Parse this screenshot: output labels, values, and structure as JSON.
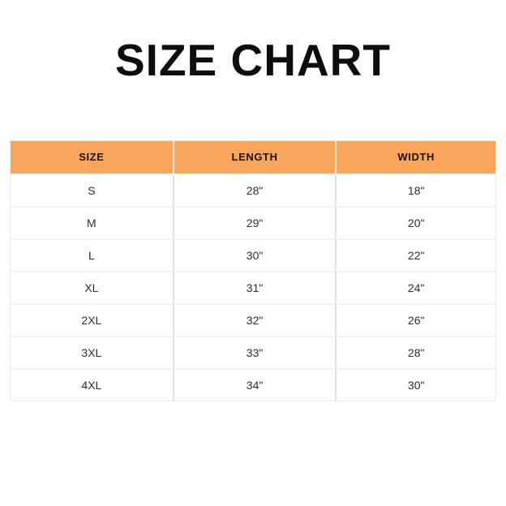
{
  "page": {
    "title": "SIZE CHART"
  },
  "colors": {
    "header_bg": "#FAA55C",
    "header_text": "#141414",
    "body_text": "#2E2E2E",
    "grid_vertical": "#E4E4E4",
    "grid_horizontal": "#F2F2F2",
    "page_bg": "#FFFFFF",
    "title_text": "#0D0D0D"
  },
  "table": {
    "columns": [
      "SIZE",
      "LENGTH",
      "WIDTH"
    ],
    "rows": [
      {
        "size": "S",
        "length": "28\"",
        "width": "18\""
      },
      {
        "size": "M",
        "length": "29\"",
        "width": "20\""
      },
      {
        "size": "L",
        "length": "30\"",
        "width": "22\""
      },
      {
        "size": "XL",
        "length": "31\"",
        "width": "24\""
      },
      {
        "size": "2XL",
        "length": "32\"",
        "width": "26\""
      },
      {
        "size": "3XL",
        "length": "33\"",
        "width": "28\""
      },
      {
        "size": "4XL",
        "length": "34\"",
        "width": "30\""
      }
    ]
  },
  "chart_data": {
    "type": "table",
    "title": "SIZE CHART",
    "columns": [
      "SIZE",
      "LENGTH",
      "WIDTH"
    ],
    "units": "inches",
    "rows": [
      [
        "S",
        28,
        18
      ],
      [
        "M",
        29,
        20
      ],
      [
        "L",
        30,
        22
      ],
      [
        "XL",
        31,
        24
      ],
      [
        "2XL",
        32,
        26
      ],
      [
        "3XL",
        33,
        28
      ],
      [
        "4XL",
        34,
        30
      ]
    ],
    "layout": {
      "header_background": "#FAA55C",
      "grid": true,
      "alignment": "center"
    }
  }
}
